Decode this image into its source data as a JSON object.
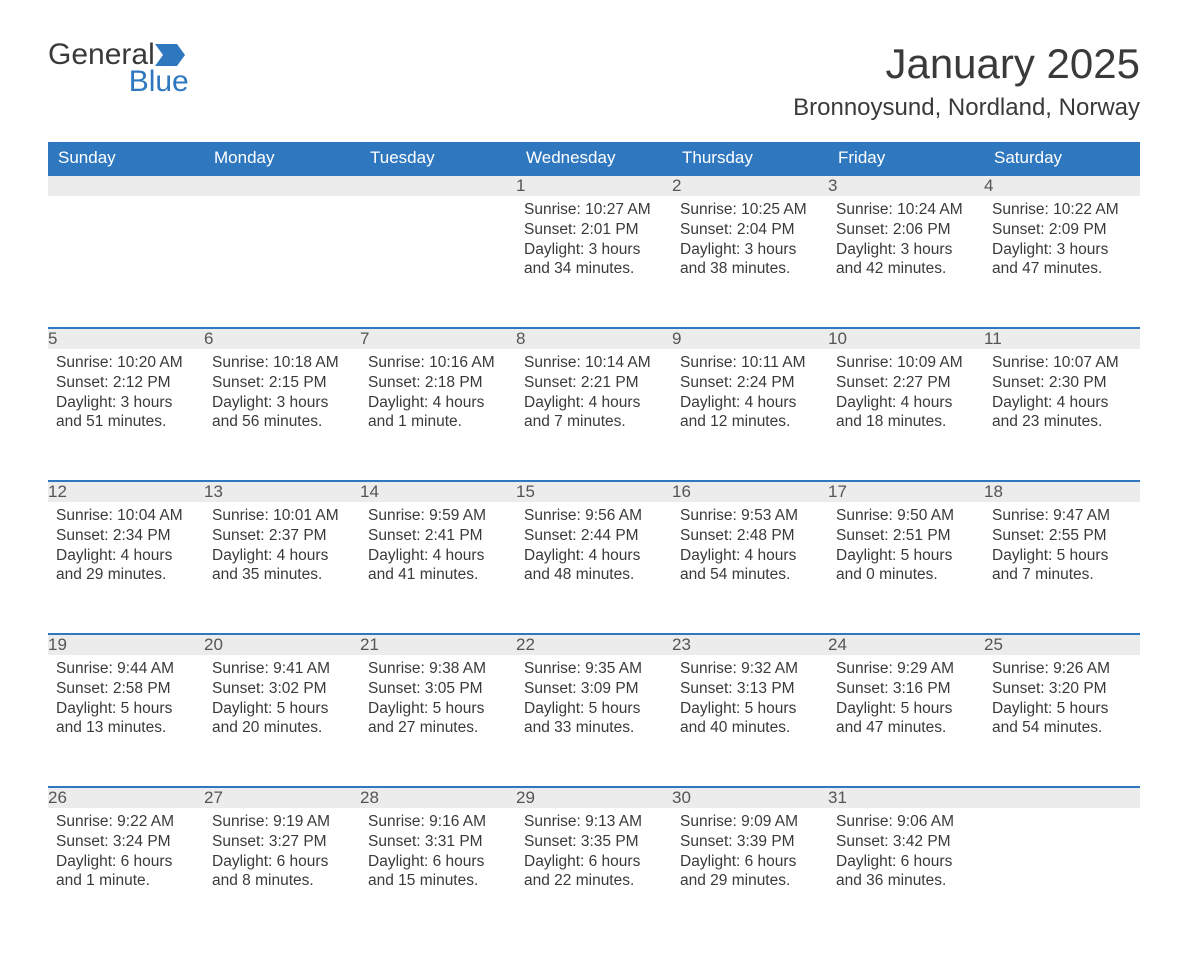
{
  "logo": {
    "word1": "General",
    "word2": "Blue",
    "accent_color": "#2f78bf"
  },
  "title": "January 2025",
  "location": "Bronnoysund, Nordland, Norway",
  "colors": {
    "header_bg": "#2f78bf",
    "header_text": "#ffffff",
    "daynum_bg": "#ececec",
    "daynum_border": "#2f78bf",
    "body_text": "#3a3a3a",
    "page_bg": "#ffffff"
  },
  "weekdays": [
    "Sunday",
    "Monday",
    "Tuesday",
    "Wednesday",
    "Thursday",
    "Friday",
    "Saturday"
  ],
  "weeks": [
    [
      null,
      null,
      null,
      {
        "n": "1",
        "sunrise": "10:27 AM",
        "sunset": "2:01 PM",
        "daylight": "3 hours and 34 minutes."
      },
      {
        "n": "2",
        "sunrise": "10:25 AM",
        "sunset": "2:04 PM",
        "daylight": "3 hours and 38 minutes."
      },
      {
        "n": "3",
        "sunrise": "10:24 AM",
        "sunset": "2:06 PM",
        "daylight": "3 hours and 42 minutes."
      },
      {
        "n": "4",
        "sunrise": "10:22 AM",
        "sunset": "2:09 PM",
        "daylight": "3 hours and 47 minutes."
      }
    ],
    [
      {
        "n": "5",
        "sunrise": "10:20 AM",
        "sunset": "2:12 PM",
        "daylight": "3 hours and 51 minutes."
      },
      {
        "n": "6",
        "sunrise": "10:18 AM",
        "sunset": "2:15 PM",
        "daylight": "3 hours and 56 minutes."
      },
      {
        "n": "7",
        "sunrise": "10:16 AM",
        "sunset": "2:18 PM",
        "daylight": "4 hours and 1 minute."
      },
      {
        "n": "8",
        "sunrise": "10:14 AM",
        "sunset": "2:21 PM",
        "daylight": "4 hours and 7 minutes."
      },
      {
        "n": "9",
        "sunrise": "10:11 AM",
        "sunset": "2:24 PM",
        "daylight": "4 hours and 12 minutes."
      },
      {
        "n": "10",
        "sunrise": "10:09 AM",
        "sunset": "2:27 PM",
        "daylight": "4 hours and 18 minutes."
      },
      {
        "n": "11",
        "sunrise": "10:07 AM",
        "sunset": "2:30 PM",
        "daylight": "4 hours and 23 minutes."
      }
    ],
    [
      {
        "n": "12",
        "sunrise": "10:04 AM",
        "sunset": "2:34 PM",
        "daylight": "4 hours and 29 minutes."
      },
      {
        "n": "13",
        "sunrise": "10:01 AM",
        "sunset": "2:37 PM",
        "daylight": "4 hours and 35 minutes."
      },
      {
        "n": "14",
        "sunrise": "9:59 AM",
        "sunset": "2:41 PM",
        "daylight": "4 hours and 41 minutes."
      },
      {
        "n": "15",
        "sunrise": "9:56 AM",
        "sunset": "2:44 PM",
        "daylight": "4 hours and 48 minutes."
      },
      {
        "n": "16",
        "sunrise": "9:53 AM",
        "sunset": "2:48 PM",
        "daylight": "4 hours and 54 minutes."
      },
      {
        "n": "17",
        "sunrise": "9:50 AM",
        "sunset": "2:51 PM",
        "daylight": "5 hours and 0 minutes."
      },
      {
        "n": "18",
        "sunrise": "9:47 AM",
        "sunset": "2:55 PM",
        "daylight": "5 hours and 7 minutes."
      }
    ],
    [
      {
        "n": "19",
        "sunrise": "9:44 AM",
        "sunset": "2:58 PM",
        "daylight": "5 hours and 13 minutes."
      },
      {
        "n": "20",
        "sunrise": "9:41 AM",
        "sunset": "3:02 PM",
        "daylight": "5 hours and 20 minutes."
      },
      {
        "n": "21",
        "sunrise": "9:38 AM",
        "sunset": "3:05 PM",
        "daylight": "5 hours and 27 minutes."
      },
      {
        "n": "22",
        "sunrise": "9:35 AM",
        "sunset": "3:09 PM",
        "daylight": "5 hours and 33 minutes."
      },
      {
        "n": "23",
        "sunrise": "9:32 AM",
        "sunset": "3:13 PM",
        "daylight": "5 hours and 40 minutes."
      },
      {
        "n": "24",
        "sunrise": "9:29 AM",
        "sunset": "3:16 PM",
        "daylight": "5 hours and 47 minutes."
      },
      {
        "n": "25",
        "sunrise": "9:26 AM",
        "sunset": "3:20 PM",
        "daylight": "5 hours and 54 minutes."
      }
    ],
    [
      {
        "n": "26",
        "sunrise": "9:22 AM",
        "sunset": "3:24 PM",
        "daylight": "6 hours and 1 minute."
      },
      {
        "n": "27",
        "sunrise": "9:19 AM",
        "sunset": "3:27 PM",
        "daylight": "6 hours and 8 minutes."
      },
      {
        "n": "28",
        "sunrise": "9:16 AM",
        "sunset": "3:31 PM",
        "daylight": "6 hours and 15 minutes."
      },
      {
        "n": "29",
        "sunrise": "9:13 AM",
        "sunset": "3:35 PM",
        "daylight": "6 hours and 22 minutes."
      },
      {
        "n": "30",
        "sunrise": "9:09 AM",
        "sunset": "3:39 PM",
        "daylight": "6 hours and 29 minutes."
      },
      {
        "n": "31",
        "sunrise": "9:06 AM",
        "sunset": "3:42 PM",
        "daylight": "6 hours and 36 minutes."
      },
      null
    ]
  ],
  "labels": {
    "sunrise": "Sunrise: ",
    "sunset": "Sunset: ",
    "daylight": "Daylight: "
  }
}
